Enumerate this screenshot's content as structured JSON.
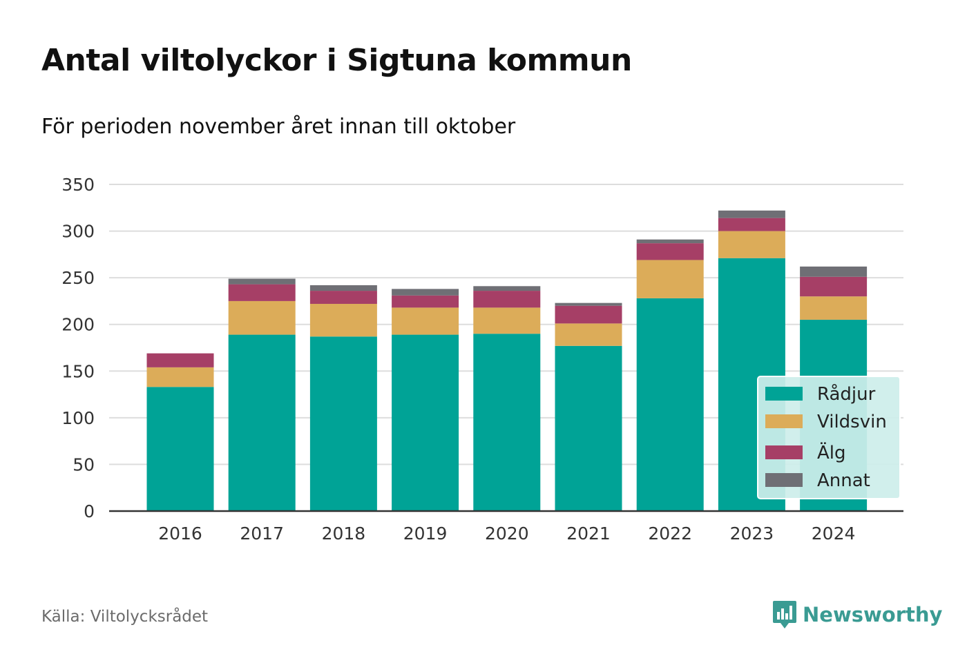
{
  "header": {
    "title": "Antal viltolyckor i Sigtuna kommun",
    "subtitle": "För perioden november året innan till oktober"
  },
  "footer": {
    "source": "Källa: Viltolycksrådet",
    "brand": "Newsworthy",
    "brand_icon": "bar-chart-speech-bubble-icon",
    "brand_color": "#3a9b93"
  },
  "chart_data": {
    "type": "bar",
    "stacked": true,
    "categories": [
      "2016",
      "2017",
      "2018",
      "2019",
      "2020",
      "2021",
      "2022",
      "2023",
      "2024"
    ],
    "series": [
      {
        "name": "Rådjur",
        "color": "#00a396",
        "values": [
          133,
          189,
          187,
          189,
          190,
          177,
          228,
          271,
          205
        ]
      },
      {
        "name": "Vildsvin",
        "color": "#dcac59",
        "values": [
          21,
          36,
          35,
          29,
          28,
          24,
          41,
          29,
          25
        ]
      },
      {
        "name": "Älg",
        "color": "#a63f66",
        "values": [
          15,
          18,
          14,
          13,
          18,
          19,
          18,
          14,
          21
        ]
      },
      {
        "name": "Annat",
        "color": "#6f6f75",
        "values": [
          0,
          6,
          6,
          7,
          5,
          3,
          4,
          8,
          11
        ]
      }
    ],
    "ylim": [
      0,
      350
    ],
    "yticks": [
      0,
      50,
      100,
      150,
      200,
      250,
      300,
      350
    ],
    "xlabel": "",
    "ylabel": "",
    "grid": true,
    "legend_position": "bottom-right",
    "legend_background": "#cdeeea"
  }
}
